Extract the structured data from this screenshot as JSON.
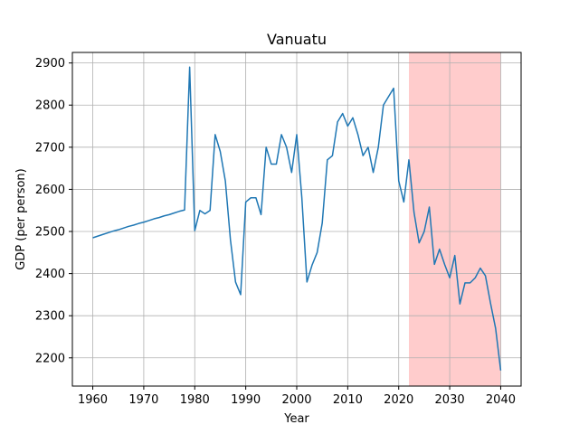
{
  "chart_data": {
    "type": "line",
    "title": "Vanuatu",
    "xlabel": "Year",
    "ylabel": "GDP (per person)",
    "xlim": [
      1956,
      2044
    ],
    "ylim": [
      2133,
      2925
    ],
    "xticks": [
      1960,
      1970,
      1980,
      1990,
      2000,
      2010,
      2020,
      2030,
      2040
    ],
    "yticks": [
      2200,
      2300,
      2400,
      2500,
      2600,
      2700,
      2800,
      2900
    ],
    "grid": true,
    "highlight_span": {
      "x": [
        2022,
        2040
      ],
      "color": "#ffcccc"
    },
    "series_color": "#1f77b4",
    "series": [
      {
        "x": [
          1960,
          1961,
          1962,
          1963,
          1964,
          1965,
          1966,
          1967,
          1968,
          1969,
          1970,
          1971,
          1972,
          1973,
          1974,
          1975,
          1976,
          1977,
          1978,
          1979,
          1980,
          1981,
          1982,
          1983,
          1984,
          1985,
          1986,
          1987,
          1988,
          1989,
          1990,
          1991,
          1992,
          1993,
          1994,
          1995,
          1996,
          1997,
          1998,
          1999,
          2000,
          2001,
          2002,
          2003,
          2004,
          2005,
          2006,
          2007,
          2008,
          2009,
          2010,
          2011,
          2012,
          2013,
          2014,
          2015,
          2016,
          2017,
          2018,
          2019,
          2020,
          2021,
          2022,
          2023,
          2024,
          2025,
          2026,
          2027,
          2028,
          2029,
          2030,
          2031,
          2032,
          2033,
          2034,
          2035,
          2036,
          2037,
          2038,
          2039,
          2040
        ],
        "y": [
          2485,
          2489,
          2493,
          2497,
          2501,
          2504,
          2508,
          2512,
          2515,
          2519,
          2522,
          2526,
          2530,
          2533,
          2537,
          2540,
          2544,
          2548,
          2551,
          2890,
          2502,
          2550,
          2542,
          2550,
          2730,
          2690,
          2620,
          2480,
          2380,
          2350,
          2570,
          2580,
          2580,
          2540,
          2700,
          2660,
          2660,
          2730,
          2700,
          2640,
          2730,
          2580,
          2380,
          2420,
          2450,
          2520,
          2670,
          2680,
          2760,
          2780,
          2750,
          2770,
          2730,
          2680,
          2700,
          2640,
          2700,
          2800,
          2820,
          2840,
          2620,
          2570,
          2670,
          2545,
          2473,
          2500,
          2558,
          2422,
          2458,
          2422,
          2390,
          2443,
          2328,
          2378,
          2378,
          2390,
          2413,
          2395,
          2330,
          2270,
          2170
        ]
      }
    ]
  }
}
